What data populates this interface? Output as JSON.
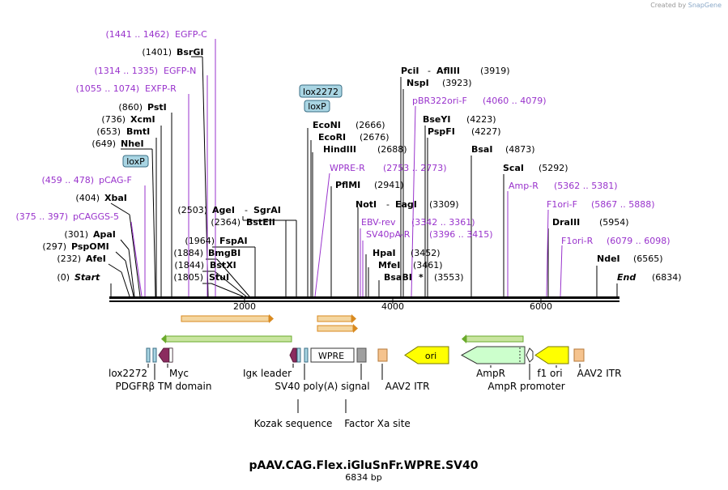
{
  "credit": {
    "prefix": "Created by",
    "brand": "SnapGene"
  },
  "title": "pAAV.CAG.Flex.iGluSnFr.WPRE.SV40",
  "subtitle": "6834 bp",
  "ruler_ticks": [
    "2000",
    "4000",
    "6000"
  ],
  "box_labels": {
    "lox2272": "lox2272",
    "loxP": "loxP"
  },
  "sites": {
    "start": {
      "pos": "(0)",
      "name": "Start"
    },
    "afeI": {
      "pos": "(232)",
      "name": "AfeI"
    },
    "pspOMI": {
      "pos": "(297)",
      "name": "PspOMI"
    },
    "apaI": {
      "pos": "(301)",
      "name": "ApaI"
    },
    "pcaggs5": {
      "pos": "(375 .. 397)",
      "name": "pCAGGS-5"
    },
    "xbaI": {
      "pos": "(404)",
      "name": "XbaI"
    },
    "pcagF": {
      "pos": "(459 .. 478)",
      "name": "pCAG-F"
    },
    "nheI": {
      "pos": "(649)",
      "name": "NheI"
    },
    "bmtI": {
      "pos": "(653)",
      "name": "BmtI"
    },
    "xcmI": {
      "pos": "(736)",
      "name": "XcmI"
    },
    "pstI": {
      "pos": "(860)",
      "name": "PstI"
    },
    "exfpR": {
      "pos": "(1055 .. 1074)",
      "name": "EXFP-R"
    },
    "egfpN": {
      "pos": "(1314 .. 1335)",
      "name": "EGFP-N"
    },
    "bsrGI": {
      "pos": "(1401)",
      "name": "BsrGI"
    },
    "egfpC": {
      "pos": "(1441 .. 1462)",
      "name": "EGFP-C"
    },
    "stuI": {
      "pos": "(1805)",
      "name": "StuI"
    },
    "bstXI": {
      "pos": "(1844)",
      "name": "BstXI"
    },
    "bmgBI": {
      "pos": "(1884)",
      "name": "BmgBI"
    },
    "fspAI": {
      "pos": "(1964)",
      "name": "FspAI"
    },
    "bstEII": {
      "pos": "(2364)",
      "name": "BstEII"
    },
    "ageI": {
      "pos": "(2503)",
      "name": "AgeI",
      "name2": "SgrAI"
    },
    "ecoNI": {
      "pos": "(2666)",
      "name": "EcoNI"
    },
    "ecoRI": {
      "pos": "(2676)",
      "name": "EcoRI"
    },
    "hindIII": {
      "pos": "(2688)",
      "name": "HindIII"
    },
    "wpreR": {
      "pos": "(2753 .. 2773)",
      "name": "WPRE-R"
    },
    "pflMI": {
      "pos": "(2941)",
      "name": "PflMI"
    },
    "notI": {
      "pos": "(3309)",
      "name": "NotI",
      "name2": "EagI"
    },
    "ebvRev": {
      "pos": "(3342 .. 3361)",
      "name": "EBV-rev"
    },
    "sv40pAR": {
      "pos": "(3396 .. 3415)",
      "name": "SV40pA-R"
    },
    "hpaI": {
      "pos": "(3452)",
      "name": "HpaI"
    },
    "mfeI": {
      "pos": "(3461)",
      "name": "MfeI"
    },
    "bsaBI": {
      "pos": "(3553)",
      "name": "BsaBI",
      "mark": "*"
    },
    "pciI": {
      "pos": "(3919)",
      "name": "PciI",
      "name2": "AflIII"
    },
    "nspI": {
      "pos": "(3923)",
      "name": "NspI"
    },
    "pbr322": {
      "pos": "(4060 .. 4079)",
      "name": "pBR322ori-F"
    },
    "bseYI": {
      "pos": "(4223)",
      "name": "BseYI"
    },
    "pspFI": {
      "pos": "(4227)",
      "name": "PspFI"
    },
    "bsaI": {
      "pos": "(4873)",
      "name": "BsaI"
    },
    "scaI": {
      "pos": "(5292)",
      "name": "ScaI"
    },
    "ampR": {
      "pos": "(5362 .. 5381)",
      "name": "Amp-R"
    },
    "f1oriF": {
      "pos": "(5867 .. 5888)",
      "name": "F1ori-F"
    },
    "draIII": {
      "pos": "(5954)",
      "name": "DraIII"
    },
    "f1oriR": {
      "pos": "(6079 .. 6098)",
      "name": "F1ori-R"
    },
    "ndeI": {
      "pos": "(6565)",
      "name": "NdeI"
    },
    "end": {
      "pos": "(6834)",
      "name": "End"
    }
  },
  "features": {
    "wpre": "WPRE",
    "ori": "ori",
    "lox2272": "lox2272",
    "myc": "Myc",
    "pdgfr": "PDGFRβ TM domain",
    "igk": "Igκ leader",
    "sv40": "SV40 poly(A) signal",
    "aav2itr1": "AAV2 ITR",
    "ampr": "AmpR",
    "amprPromoter": "AmpR promoter",
    "f1ori": "f1 ori",
    "aav2itr2": "AAV2 ITR",
    "kozak": "Kozak sequence",
    "factorXa": "Factor Xa site"
  },
  "colors": {
    "primer": "#9933cc",
    "line": "#000000",
    "lox_fill": "#a9d5e3",
    "lox_stroke": "#3a6e84",
    "myc": "#8b2c5f",
    "green_arrow": "#6aaa2c",
    "orange_arrow": "#d98a20",
    "ori": "#ffff00",
    "ampr": "#ccffcc",
    "itr": "#f5c38e",
    "grey_box": "#a0a0a0"
  }
}
